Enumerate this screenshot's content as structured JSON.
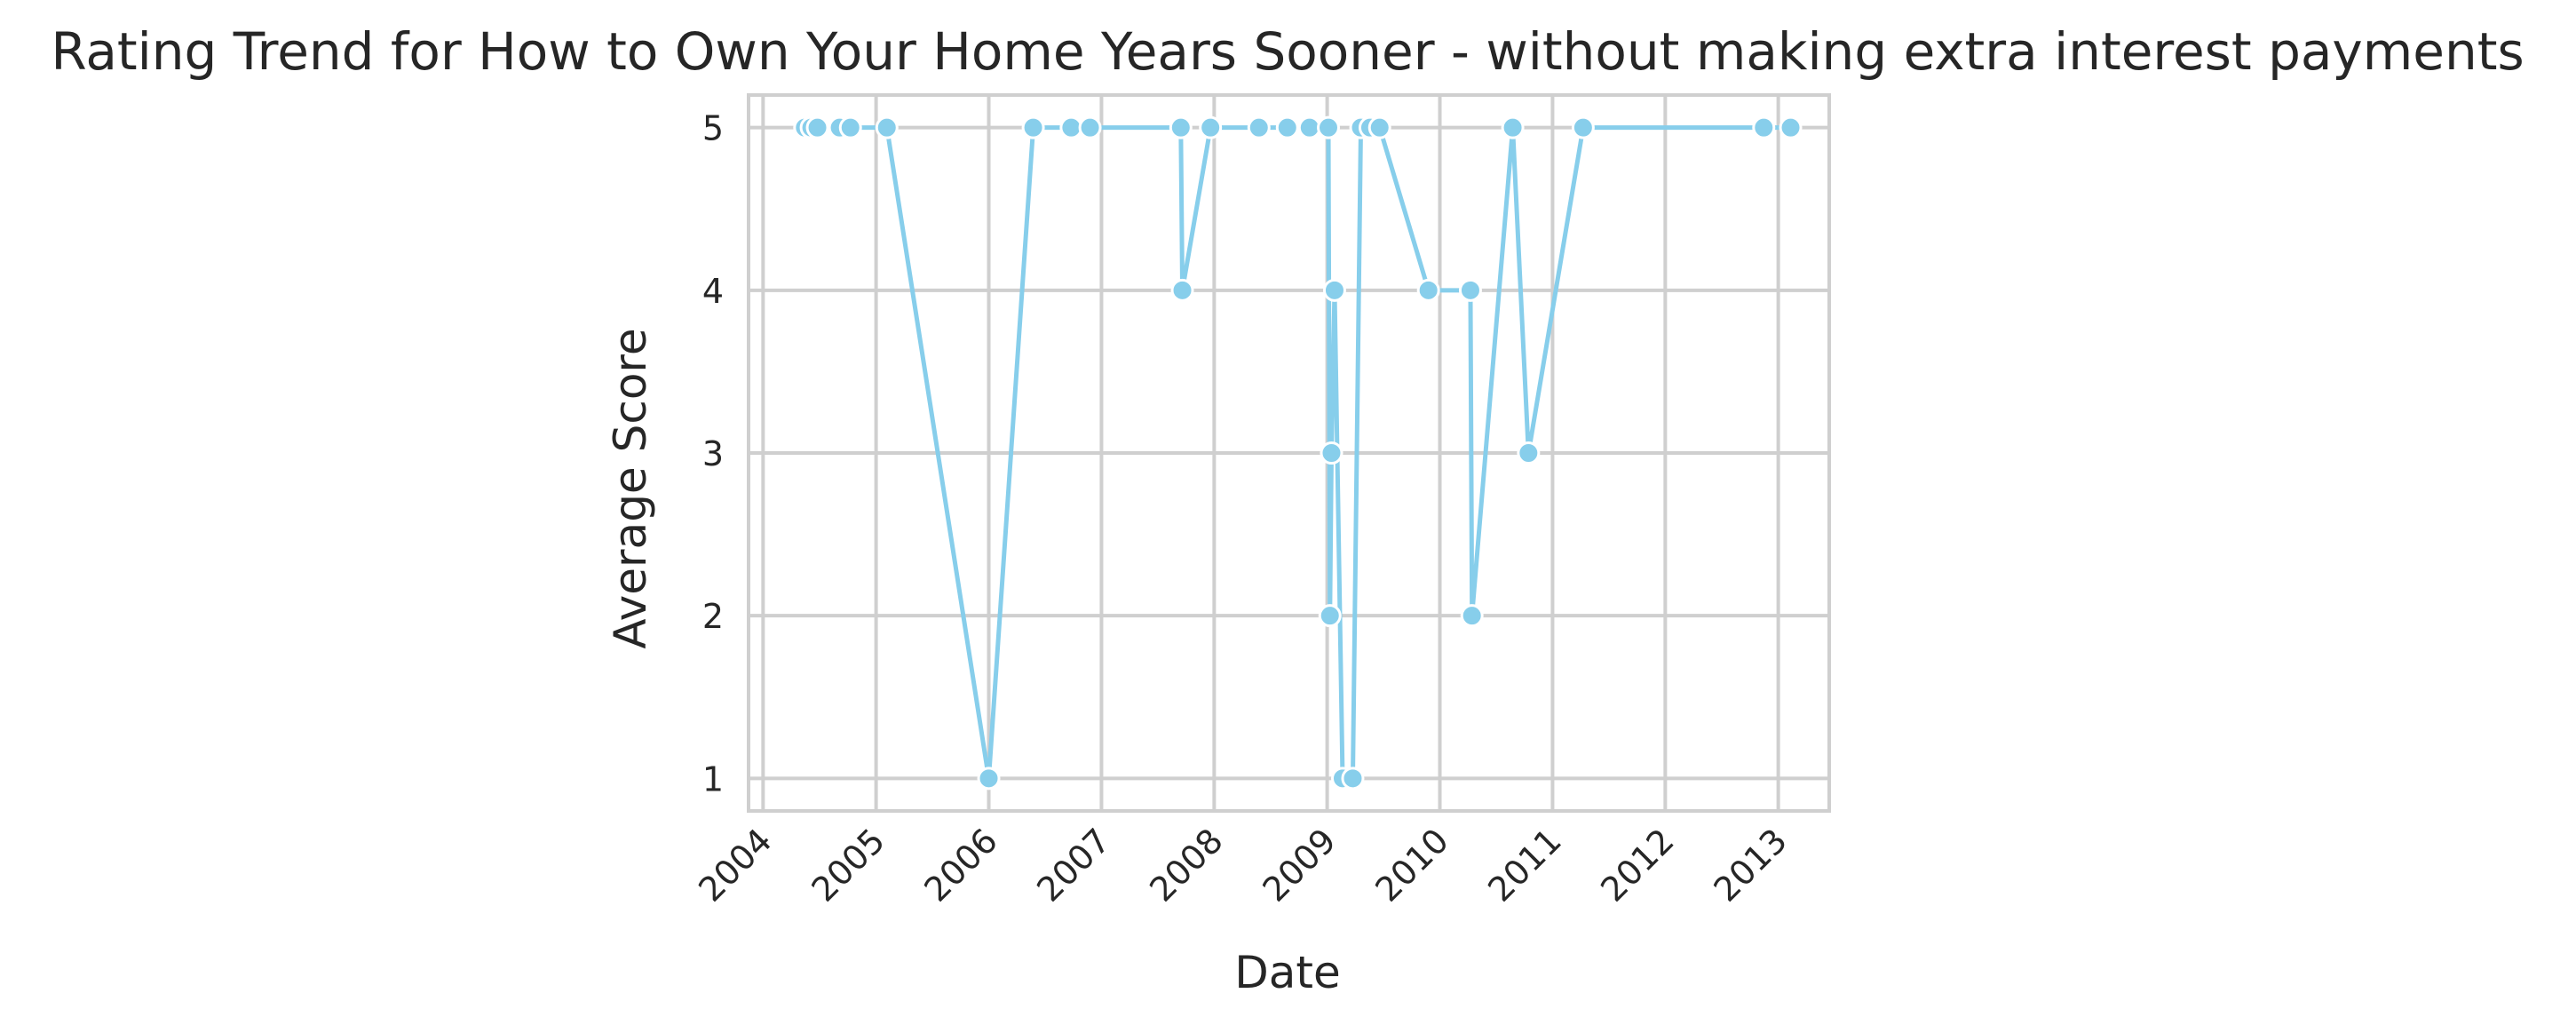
{
  "chart_data": {
    "type": "line",
    "title": "Rating Trend for How to Own Your Home Years Sooner - without making extra interest payments",
    "xlabel": "Date",
    "ylabel": "Average Score",
    "x_axis_type": "date",
    "ylim": [
      0.8,
      5.2
    ],
    "xlim": [
      "2003-11-15",
      "2013-06-15"
    ],
    "x_ticks": [
      {
        "value": "2004-01-01",
        "label": "2004"
      },
      {
        "value": "2005-01-01",
        "label": "2005"
      },
      {
        "value": "2006-01-01",
        "label": "2006"
      },
      {
        "value": "2007-01-01",
        "label": "2007"
      },
      {
        "value": "2008-01-01",
        "label": "2008"
      },
      {
        "value": "2009-01-01",
        "label": "2009"
      },
      {
        "value": "2010-01-01",
        "label": "2010"
      },
      {
        "value": "2011-01-01",
        "label": "2011"
      },
      {
        "value": "2012-01-01",
        "label": "2012"
      },
      {
        "value": "2013-01-01",
        "label": "2013"
      }
    ],
    "y_ticks": [
      {
        "value": 1,
        "label": "1"
      },
      {
        "value": 2,
        "label": "2"
      },
      {
        "value": 3,
        "label": "3"
      },
      {
        "value": 4,
        "label": "4"
      },
      {
        "value": 5,
        "label": "5"
      }
    ],
    "grid": true,
    "series": [
      {
        "color": "#87CEEB",
        "marker": "circle",
        "points": [
          {
            "x": "2004-05-15",
            "y": 5
          },
          {
            "x": "2004-06-05",
            "y": 5
          },
          {
            "x": "2004-06-25",
            "y": 5
          },
          {
            "x": "2004-09-05",
            "y": 5
          },
          {
            "x": "2004-10-10",
            "y": 5
          },
          {
            "x": "2005-02-05",
            "y": 5
          },
          {
            "x": "2006-01-01",
            "y": 1
          },
          {
            "x": "2006-05-25",
            "y": 5
          },
          {
            "x": "2006-09-25",
            "y": 5
          },
          {
            "x": "2006-11-25",
            "y": 5
          },
          {
            "x": "2007-09-15",
            "y": 5
          },
          {
            "x": "2007-09-20",
            "y": 4
          },
          {
            "x": "2007-12-20",
            "y": 5
          },
          {
            "x": "2008-05-25",
            "y": 5
          },
          {
            "x": "2008-08-25",
            "y": 5
          },
          {
            "x": "2008-11-05",
            "y": 5
          },
          {
            "x": "2009-01-05",
            "y": 5
          },
          {
            "x": "2009-01-10",
            "y": 2
          },
          {
            "x": "2009-01-15",
            "y": 3
          },
          {
            "x": "2009-01-25",
            "y": 4
          },
          {
            "x": "2009-02-20",
            "y": 1
          },
          {
            "x": "2009-03-25",
            "y": 1
          },
          {
            "x": "2009-04-20",
            "y": 5
          },
          {
            "x": "2009-05-20",
            "y": 5
          },
          {
            "x": "2009-06-20",
            "y": 5
          },
          {
            "x": "2009-11-25",
            "y": 4
          },
          {
            "x": "2010-04-10",
            "y": 4
          },
          {
            "x": "2010-04-15",
            "y": 2
          },
          {
            "x": "2010-08-25",
            "y": 5
          },
          {
            "x": "2010-10-15",
            "y": 3
          },
          {
            "x": "2011-04-10",
            "y": 5
          },
          {
            "x": "2012-11-15",
            "y": 5
          },
          {
            "x": "2013-02-10",
            "y": 5
          }
        ]
      }
    ]
  }
}
